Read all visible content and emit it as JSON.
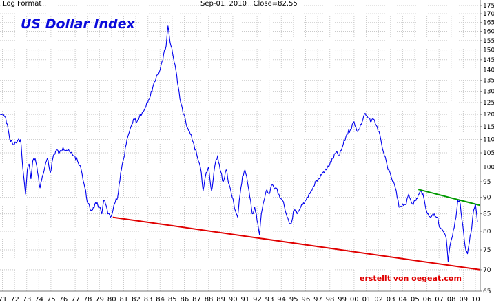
{
  "header": {
    "scale_label": "Log Format",
    "date_label": "Sep-01",
    "year_label": "2010",
    "close_label": "Close=82.55"
  },
  "colors": {
    "title": "#0a0adb",
    "price_line": "#0000ee",
    "support_line": "#e00000",
    "resistance_line": "#009900",
    "credit": "#e00000",
    "grid": "#c9c9c9",
    "frame": "#7a7a7a"
  },
  "chart_data": {
    "type": "line",
    "title": "US Dollar Index",
    "xlabel": "",
    "ylabel": "",
    "scale": "log",
    "ylim": [
      65,
      175
    ],
    "xlim": [
      1971.3,
      2010.9
    ],
    "grid": true,
    "y_ticks": [
      65,
      70,
      75,
      80,
      85,
      90,
      95,
      100,
      105,
      110,
      115,
      120,
      125,
      130,
      135,
      140,
      145,
      150,
      155,
      160,
      165,
      170,
      175
    ],
    "x_ticks": [
      {
        "year": 1971,
        "label": "71"
      },
      {
        "year": 1972,
        "label": "72"
      },
      {
        "year": 1973,
        "label": "73"
      },
      {
        "year": 1974,
        "label": "74"
      },
      {
        "year": 1975,
        "label": "75"
      },
      {
        "year": 1976,
        "label": "76"
      },
      {
        "year": 1977,
        "label": "77"
      },
      {
        "year": 1978,
        "label": "78"
      },
      {
        "year": 1979,
        "label": "79"
      },
      {
        "year": 1980,
        "label": "80"
      },
      {
        "year": 1981,
        "label": "81"
      },
      {
        "year": 1982,
        "label": "82"
      },
      {
        "year": 1983,
        "label": "83"
      },
      {
        "year": 1984,
        "label": "84"
      },
      {
        "year": 1985,
        "label": "85"
      },
      {
        "year": 1986,
        "label": "86"
      },
      {
        "year": 1987,
        "label": "87"
      },
      {
        "year": 1988,
        "label": "88"
      },
      {
        "year": 1989,
        "label": "89"
      },
      {
        "year": 1990,
        "label": "90"
      },
      {
        "year": 1991,
        "label": "91"
      },
      {
        "year": 1992,
        "label": "92"
      },
      {
        "year": 1993,
        "label": "93"
      },
      {
        "year": 1994,
        "label": "94"
      },
      {
        "year": 1995,
        "label": "95"
      },
      {
        "year": 1996,
        "label": "96"
      },
      {
        "year": 1997,
        "label": "97"
      },
      {
        "year": 1998,
        "label": "98"
      },
      {
        "year": 1999,
        "label": "99"
      },
      {
        "year": 2000,
        "label": "00"
      },
      {
        "year": 2001,
        "label": "01"
      },
      {
        "year": 2002,
        "label": "02"
      },
      {
        "year": 2003,
        "label": "03"
      },
      {
        "year": 2004,
        "label": "04"
      },
      {
        "year": 2005,
        "label": "05"
      },
      {
        "year": 2006,
        "label": "06"
      },
      {
        "year": 2007,
        "label": "07"
      },
      {
        "year": 2008,
        "label": "08"
      },
      {
        "year": 2009,
        "label": "09"
      },
      {
        "year": 2010,
        "label": "10"
      }
    ],
    "series": [
      {
        "x": [
          1971.3,
          1971.5,
          1971.7,
          1971.9,
          1972.1,
          1972.4,
          1972.7,
          1973.0,
          1973.1,
          1973.25,
          1973.4,
          1973.55,
          1973.7,
          1973.85,
          1974.0,
          1974.2,
          1974.4,
          1974.6,
          1974.8,
          1975.0,
          1975.2,
          1975.45,
          1975.7,
          1975.95,
          1976.2,
          1976.5,
          1976.8,
          1977.1,
          1977.4,
          1977.7,
          1978.0,
          1978.3,
          1978.55,
          1978.8,
          1979.0,
          1979.25,
          1979.5,
          1979.7,
          1979.85,
          1980.0,
          1980.2,
          1980.4,
          1980.55,
          1980.75,
          1981.0,
          1981.25,
          1981.5,
          1981.7,
          1981.9,
          1982.1,
          1982.3,
          1982.6,
          1982.85,
          1983.1,
          1983.4,
          1983.7,
          1983.95,
          1984.2,
          1984.5,
          1984.8,
          1985.0,
          1985.15,
          1985.25,
          1985.4,
          1985.6,
          1985.8,
          1986.0,
          1986.2,
          1986.45,
          1986.7,
          1987.0,
          1987.3,
          1987.6,
          1987.9,
          1988.05,
          1988.25,
          1988.5,
          1988.75,
          1989.0,
          1989.25,
          1989.45,
          1989.7,
          1989.95,
          1990.2,
          1990.45,
          1990.7,
          1990.9,
          1991.1,
          1991.3,
          1991.5,
          1991.7,
          1991.9,
          1992.1,
          1992.3,
          1992.5,
          1992.7,
          1992.85,
          1993.0,
          1993.25,
          1993.5,
          1993.75,
          1994.0,
          1994.3,
          1994.6,
          1994.9,
          1995.1,
          1995.3,
          1995.55,
          1995.8,
          1996.1,
          1996.4,
          1996.7,
          1997.0,
          1997.3,
          1997.6,
          1997.9,
          1998.2,
          1998.5,
          1998.75,
          1999.0,
          1999.3,
          1999.6,
          1999.9,
          2000.2,
          2000.5,
          2000.8,
          2001.1,
          2001.35,
          2001.6,
          2001.85,
          2002.1,
          2002.4,
          2002.7,
          2003.0,
          2003.3,
          2003.6,
          2003.9,
          2004.2,
          2004.5,
          2004.8,
          2005.0,
          2005.3,
          2005.6,
          2005.85,
          2006.05,
          2006.3,
          2006.55,
          2006.8,
          2007.1,
          2007.35,
          2007.6,
          2007.85,
          2008.1,
          2008.25,
          2008.4,
          2008.55,
          2008.75,
          2008.9,
          2009.05,
          2009.25,
          2009.45,
          2009.65,
          2009.85,
          2010.0,
          2010.2,
          2010.35,
          2010.5,
          2010.67
        ],
        "values": [
          120,
          120,
          119,
          116,
          110,
          108,
          109,
          110,
          104,
          97,
          91,
          99,
          101,
          96,
          102,
          103,
          98,
          93,
          97,
          100,
          103,
          98,
          104,
          106,
          105,
          107,
          106,
          105,
          104,
          102,
          99,
          93,
          88,
          86,
          87,
          88,
          87,
          85,
          89,
          88,
          85,
          84,
          85,
          88,
          90,
          98,
          103,
          108,
          112,
          115,
          118,
          117,
          120,
          121,
          125,
          128,
          133,
          137,
          140,
          148,
          152,
          163,
          158,
          152,
          146,
          140,
          132,
          125,
          120,
          115,
          112,
          108,
          103,
          98,
          92,
          97,
          100,
          92,
          100,
          104,
          99,
          95,
          99,
          94,
          90,
          86,
          84,
          91,
          97,
          99,
          95,
          90,
          85,
          87,
          83,
          79,
          85,
          88,
          92,
          91,
          94,
          93,
          91,
          89,
          85,
          83,
          82,
          86,
          85,
          87,
          88,
          90,
          92,
          95,
          96,
          98,
          99,
          101,
          103,
          105,
          104,
          108,
          112,
          114,
          117,
          113,
          116,
          120,
          119,
          117,
          118,
          115,
          110,
          104,
          99,
          96,
          93,
          87,
          88,
          88,
          91,
          88,
          89,
          91,
          92,
          89,
          85,
          84,
          85,
          84,
          81,
          80,
          78,
          72,
          76,
          78,
          81,
          84,
          89,
          88,
          82,
          76,
          74,
          77,
          81,
          86,
          88,
          82.55
        ]
      }
    ],
    "support_line": {
      "x": [
        1980.6,
        2010.9
      ],
      "values": [
        84.0,
        70.0
      ]
    },
    "resistance_line": {
      "x": [
        2005.8,
        2010.9
      ],
      "values": [
        92.5,
        87.5
      ]
    }
  },
  "credit_text": "erstellt von oegeat.com"
}
